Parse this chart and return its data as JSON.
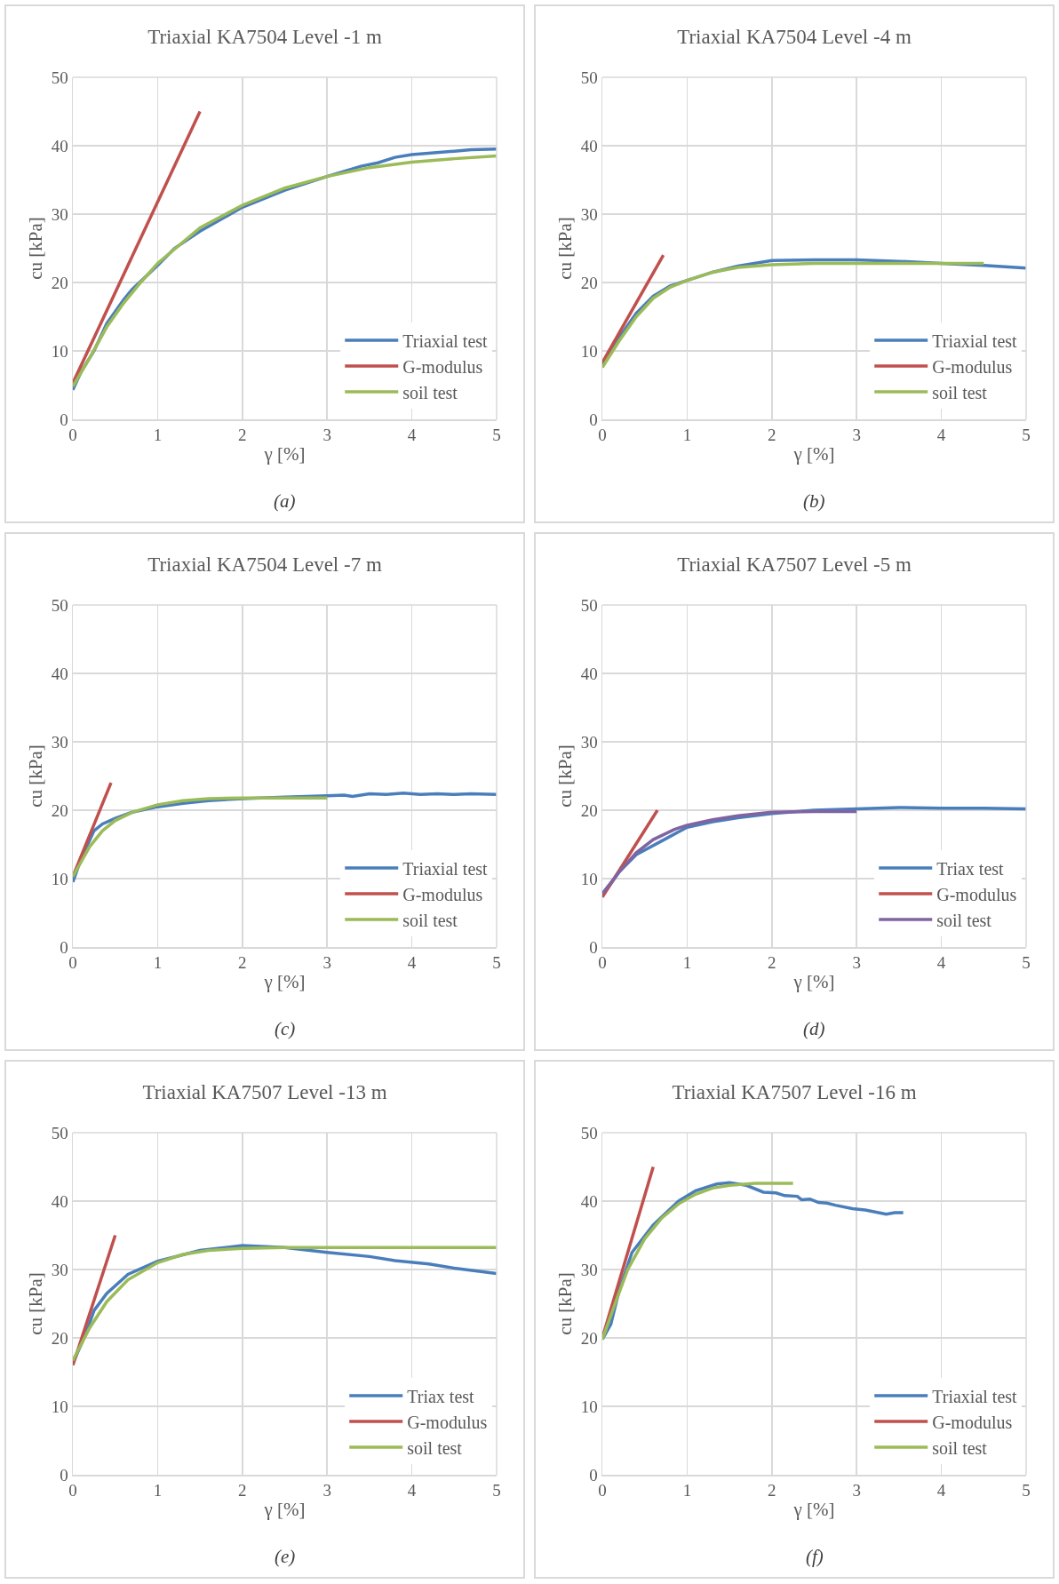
{
  "chart_data": [
    {
      "type": "line",
      "title": "Triaxial KA7504 Level -1 m",
      "xlabel": "γ [%]",
      "ylabel": "cu [kPa]",
      "annotations": [
        "(a)"
      ],
      "xlim": [
        0,
        5
      ],
      "ylim": [
        0,
        50
      ],
      "xticks": [
        0,
        1,
        2,
        3,
        4,
        5
      ],
      "yticks": [
        0,
        10,
        20,
        30,
        40,
        50
      ],
      "grid": true,
      "legend": "bottom right",
      "line_style": "solid",
      "series": [
        {
          "name": "Triaxial test",
          "color": "#4a7ebb",
          "x": [
            0,
            0.1,
            0.25,
            0.4,
            0.6,
            0.7,
            1,
            1.2,
            1.5,
            2,
            2.5,
            3,
            3.4,
            3.6,
            3.8,
            4,
            4.5,
            4.7,
            5
          ],
          "values": [
            4.3,
            7,
            10,
            14,
            17.5,
            19,
            22.5,
            25,
            27.5,
            31,
            33.5,
            35.5,
            37,
            37.5,
            38.3,
            38.7,
            39.2,
            39.4,
            39.5
          ]
        },
        {
          "name": "G-modulus",
          "color": "#c0504d",
          "x": [
            0,
            1.5
          ],
          "values": [
            5.3,
            45
          ]
        },
        {
          "name": "soil test",
          "color": "#9bbb59",
          "x": [
            0,
            0.2,
            0.4,
            0.6,
            0.8,
            1,
            1.5,
            2,
            2.5,
            3,
            3.5,
            4,
            4.5,
            5
          ],
          "values": [
            4.8,
            9,
            13.5,
            17,
            20,
            22.8,
            28,
            31.3,
            33.8,
            35.5,
            36.8,
            37.6,
            38.1,
            38.5
          ]
        }
      ]
    },
    {
      "type": "line",
      "title": "Triaxial KA7504 Level -4 m",
      "xlabel": "γ [%]",
      "ylabel": "cu [kPa]",
      "annotations": [
        "(b)"
      ],
      "xlim": [
        0,
        5
      ],
      "ylim": [
        0,
        50
      ],
      "xticks": [
        0,
        1,
        2,
        3,
        4,
        5
      ],
      "yticks": [
        0,
        10,
        20,
        30,
        40,
        50
      ],
      "grid": true,
      "legend": "bottom right",
      "line_style": "solid",
      "series": [
        {
          "name": "Triaxial test",
          "color": "#4a7ebb",
          "x": [
            0,
            0.2,
            0.4,
            0.6,
            0.8,
            1,
            1.3,
            1.6,
            2,
            2.5,
            3,
            3.5,
            4,
            4.5,
            5
          ],
          "values": [
            8,
            12,
            15.5,
            18,
            19.5,
            20.3,
            21.5,
            22.4,
            23.2,
            23.3,
            23.3,
            23.1,
            22.8,
            22.5,
            22.1
          ]
        },
        {
          "name": "G-modulus",
          "color": "#c0504d",
          "x": [
            0,
            0.72
          ],
          "values": [
            8.3,
            24
          ]
        },
        {
          "name": "soil test",
          "color": "#9bbb59",
          "x": [
            0,
            0.2,
            0.4,
            0.6,
            0.8,
            1,
            1.3,
            1.6,
            2,
            2.5,
            3,
            4,
            4.5
          ],
          "values": [
            7.6,
            11.5,
            15,
            17.7,
            19.3,
            20.3,
            21.5,
            22.2,
            22.6,
            22.8,
            22.8,
            22.8,
            22.8
          ]
        }
      ]
    },
    {
      "type": "line",
      "title": "Triaxial KA7504 Level -7 m",
      "xlabel": "γ [%]",
      "ylabel": "cu [kPa]",
      "annotations": [
        "(c)"
      ],
      "xlim": [
        0,
        5
      ],
      "ylim": [
        0,
        50
      ],
      "xticks": [
        0,
        1,
        2,
        3,
        4,
        5
      ],
      "yticks": [
        0,
        10,
        20,
        30,
        40,
        50
      ],
      "grid": true,
      "legend": "bottom right",
      "line_style": "solid",
      "series": [
        {
          "name": "Triaxial test",
          "color": "#4a7ebb",
          "x": [
            0,
            0.1,
            0.25,
            0.35,
            0.5,
            0.7,
            1,
            1.3,
            1.6,
            2,
            2.5,
            3,
            3.2,
            3.3,
            3.5,
            3.7,
            3.9,
            4.1,
            4.3,
            4.5,
            4.7,
            5
          ],
          "values": [
            9.5,
            13,
            17,
            18,
            18.8,
            19.7,
            20.5,
            21,
            21.4,
            21.7,
            21.9,
            22.1,
            22.2,
            22,
            22.4,
            22.3,
            22.5,
            22.3,
            22.4,
            22.3,
            22.4,
            22.3
          ]
        },
        {
          "name": "G-modulus",
          "color": "#c0504d",
          "x": [
            0,
            0.45
          ],
          "values": [
            10.3,
            24
          ]
        },
        {
          "name": "soil test",
          "color": "#9bbb59",
          "x": [
            0,
            0.1,
            0.2,
            0.35,
            0.5,
            0.7,
            1,
            1.3,
            1.6,
            2,
            2.5,
            3
          ],
          "values": [
            10.3,
            12.5,
            14.7,
            17,
            18.5,
            19.7,
            20.8,
            21.4,
            21.7,
            21.8,
            21.8,
            21.8
          ]
        }
      ]
    },
    {
      "type": "line",
      "title": "Triaxial KA7507 Level -5 m",
      "xlabel": "γ [%]",
      "ylabel": "cu [kPa]",
      "annotations": [
        "(d)"
      ],
      "xlim": [
        0,
        5
      ],
      "ylim": [
        0,
        50
      ],
      "xticks": [
        0,
        1,
        2,
        3,
        4,
        5
      ],
      "yticks": [
        0,
        10,
        20,
        30,
        40,
        50
      ],
      "grid": true,
      "legend": "bottom right",
      "line_style": "solid",
      "series": [
        {
          "name": "Triax test",
          "color": "#4a7ebb",
          "x": [
            0,
            0.2,
            0.4,
            0.7,
            1,
            1.3,
            1.6,
            2,
            2.5,
            3,
            3.5,
            4,
            4.5,
            5
          ],
          "values": [
            7.5,
            11,
            13.5,
            15.5,
            17.5,
            18.3,
            18.9,
            19.5,
            20,
            20.2,
            20.4,
            20.3,
            20.3,
            20.2
          ]
        },
        {
          "name": "G-modulus",
          "color": "#c0504d",
          "x": [
            0,
            0.65
          ],
          "values": [
            7.3,
            20
          ]
        },
        {
          "name": "soil test",
          "color": "#8064a2",
          "x": [
            0,
            0.2,
            0.4,
            0.6,
            0.85,
            1,
            1.3,
            1.6,
            2,
            2.5,
            3
          ],
          "values": [
            7.8,
            11,
            13.8,
            15.7,
            17.2,
            17.8,
            18.6,
            19.2,
            19.7,
            19.8,
            19.8
          ]
        }
      ]
    },
    {
      "type": "line",
      "title": "Triaxial KA7507 Level -13 m",
      "xlabel": "γ [%]",
      "ylabel": "cu [kPa]",
      "annotations": [
        "(e)"
      ],
      "xlim": [
        0,
        5
      ],
      "ylim": [
        0,
        50
      ],
      "xticks": [
        0,
        1,
        2,
        3,
        4,
        5
      ],
      "yticks": [
        0,
        10,
        20,
        30,
        40,
        50
      ],
      "grid": true,
      "legend": "bottom right",
      "line_style": "solid",
      "series": [
        {
          "name": "Triax test",
          "color": "#4a7ebb",
          "x": [
            0,
            0.15,
            0.25,
            0.4,
            0.65,
            1,
            1.5,
            2,
            2.5,
            3,
            3.5,
            3.8,
            4.2,
            4.5,
            5
          ],
          "values": [
            16.3,
            20.5,
            24,
            26.5,
            29.3,
            31.2,
            32.8,
            33.5,
            33.2,
            32.5,
            31.9,
            31.3,
            30.8,
            30.2,
            29.4
          ]
        },
        {
          "name": "G-modulus",
          "color": "#c0504d",
          "x": [
            0,
            0.5
          ],
          "values": [
            16,
            35
          ]
        },
        {
          "name": "soil test",
          "color": "#9bbb59",
          "x": [
            0,
            0.2,
            0.4,
            0.65,
            1,
            1.3,
            1.6,
            2,
            2.5,
            5
          ],
          "values": [
            16.7,
            21.5,
            25.3,
            28.5,
            31,
            32.2,
            32.8,
            33.1,
            33.2,
            33.2
          ]
        }
      ]
    },
    {
      "type": "line",
      "title": "Triaxial KA7507 Level -16 m",
      "xlabel": "γ [%]",
      "ylabel": "cu [kPa]",
      "annotations": [
        "(f)"
      ],
      "xlim": [
        0,
        5
      ],
      "ylim": [
        0,
        50
      ],
      "xticks": [
        0,
        1,
        2,
        3,
        4,
        5
      ],
      "yticks": [
        0,
        10,
        20,
        30,
        40,
        50
      ],
      "grid": true,
      "legend": "bottom right",
      "line_style": "solid",
      "series": [
        {
          "name": "Triaxial test",
          "color": "#4a7ebb",
          "x": [
            0,
            0.1,
            0.2,
            0.35,
            0.6,
            0.9,
            1.1,
            1.35,
            1.5,
            1.7,
            1.9,
            2.05,
            2.15,
            2.3,
            2.35,
            2.45,
            2.55,
            2.65,
            2.75,
            2.95,
            3.1,
            3.35,
            3.45,
            3.55
          ],
          "values": [
            19.8,
            22,
            27,
            32.5,
            36.5,
            40,
            41.5,
            42.5,
            42.7,
            42.3,
            41.3,
            41.2,
            40.8,
            40.7,
            40.2,
            40.3,
            39.8,
            39.7,
            39.4,
            38.9,
            38.7,
            38.1,
            38.3,
            38.3
          ]
        },
        {
          "name": "G-modulus",
          "color": "#c0504d",
          "x": [
            0,
            0.6
          ],
          "values": [
            20,
            45
          ]
        },
        {
          "name": "soil test",
          "color": "#9bbb59",
          "x": [
            0,
            0.15,
            0.3,
            0.5,
            0.7,
            0.9,
            1.1,
            1.3,
            1.5,
            1.8,
            2.25
          ],
          "values": [
            19.8,
            25,
            30,
            34.5,
            37.5,
            39.6,
            41,
            41.9,
            42.3,
            42.6,
            42.6
          ]
        }
      ]
    }
  ]
}
